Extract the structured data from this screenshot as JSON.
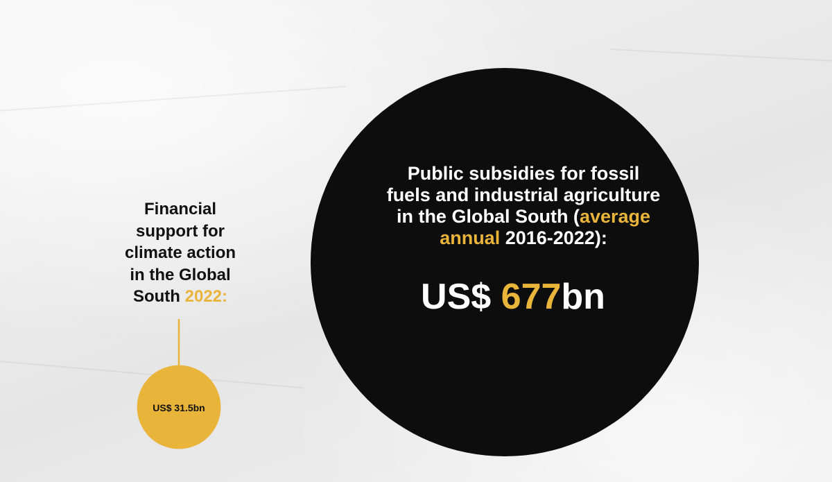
{
  "colors": {
    "background": "#ededed",
    "dark_circle": "#0d0d0d",
    "accent_gold": "#e9b43a",
    "text_dark": "#111111",
    "text_light": "#ffffff"
  },
  "chart_data": {
    "type": "bubble",
    "units": "US$ bn",
    "series": [
      {
        "label_parts": {
          "l1": "Financial",
          "l2": "support for",
          "l3": "climate action",
          "l4": "in the Global",
          "l5a": "South ",
          "l5b": "2022:"
        },
        "value_text": "US$ 31.5bn",
        "value": 31.5,
        "color": "#e9b43a"
      },
      {
        "label_parts": {
          "l1": "Public subsidies for fossil",
          "l2": "fuels and industrial agriculture",
          "l3a": "in the Global South (",
          "l3b": "average",
          "l4a": "annual",
          "l4b": " 2016-2022):"
        },
        "value_parts": {
          "prefix": "US$ ",
          "number": "677",
          "suffix": "bn"
        },
        "value": 677,
        "color": "#0d0d0d"
      }
    ]
  }
}
